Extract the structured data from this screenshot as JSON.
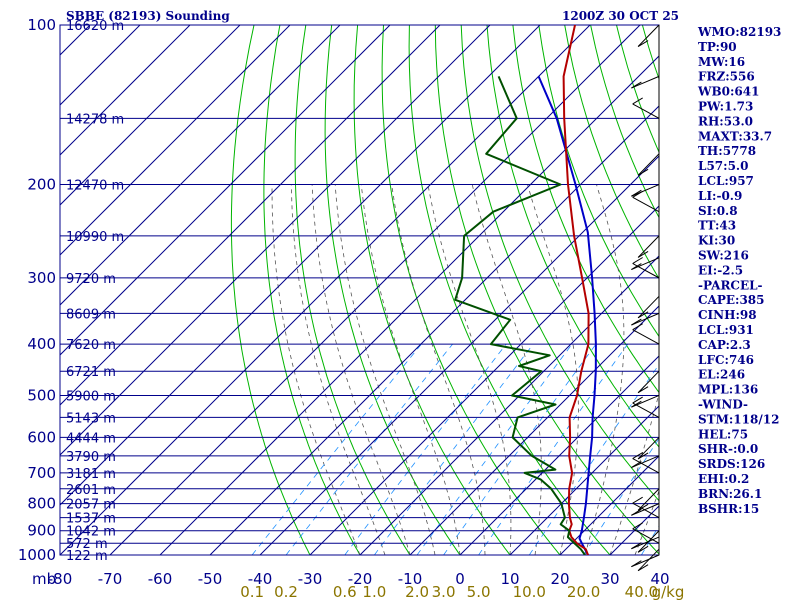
{
  "header": {
    "station_title": "SBBE (82193) Sounding",
    "valid_time": "1200Z 30 OCT 25"
  },
  "axis_corner_label": "mb",
  "pressure_labels": [
    "100",
    "200",
    "300",
    "400",
    "500",
    "600",
    "700",
    "800",
    "900",
    "1000"
  ],
  "height_labels": [
    {
      "p": 100,
      "text": "16620 m"
    },
    {
      "p": 150,
      "text": "14278 m"
    },
    {
      "p": 200,
      "text": "12470 m"
    },
    {
      "p": 250,
      "text": "10990 m"
    },
    {
      "p": 300,
      "text": "9720 m"
    },
    {
      "p": 350,
      "text": "8609 m"
    },
    {
      "p": 400,
      "text": "7620 m"
    },
    {
      "p": 450,
      "text": "6721 m"
    },
    {
      "p": 500,
      "text": "5900 m"
    },
    {
      "p": 550,
      "text": "5143 m"
    },
    {
      "p": 600,
      "text": "4444 m"
    },
    {
      "p": 650,
      "text": "3790 m"
    },
    {
      "p": 700,
      "text": "3181 m"
    },
    {
      "p": 750,
      "text": "2601 m"
    },
    {
      "p": 800,
      "text": "2057 m"
    },
    {
      "p": 850,
      "text": "1537 m"
    },
    {
      "p": 900,
      "text": "1042 m"
    },
    {
      "p": 950,
      "text": "572 m"
    },
    {
      "p": 1000,
      "text": "122 m"
    }
  ],
  "temperature_ticks": [
    "-80",
    "-70",
    "-60",
    "-50",
    "-40",
    "-30",
    "-20",
    "-10",
    "0",
    "10",
    "20",
    "30",
    "40"
  ],
  "mixing_ratio_labels": [
    "0.1",
    "0.2",
    "0.6",
    "1.0",
    "2.0",
    "3.0",
    "5.0",
    "10.0",
    "20.0",
    "40.0"
  ],
  "mixing_ratio_unit": "g/kg",
  "indices": [
    "WMO:82193",
    "TP:90",
    "MW:16",
    "FRZ:556",
    "WB0:641",
    "PW:1.73",
    "RH:53.0",
    "MAXT:33.7",
    "TH:5778",
    "L57:5.0",
    "LCL:957",
    "LI:-0.9",
    "SI:0.8",
    "TT:43",
    "KI:30",
    "SW:216",
    "EI:-2.5",
    "-PARCEL-",
    "CAPE:385",
    "CINH:98",
    "LCL:931",
    "CAP:2.3",
    "LFC:746",
    "EL:246",
    "MPL:136",
    "-WIND-",
    "STM:118/12",
    "HEL:75",
    "SHR-:0.0",
    "SRDS:126",
    "EHI:0.2",
    "BRN:26.1",
    "BSHR:15"
  ],
  "colors": {
    "grid": "#00008b",
    "dry_adiabat": "#00b400",
    "moist_adiabat": "#555555",
    "mixing_ratio": "#1e90ff",
    "temperature": "#b40000",
    "dewpoint": "#005000",
    "parcel": "#0000c8",
    "mixing_ratio_label": "#8b7500"
  },
  "chart_data": {
    "type": "line",
    "title": "SBBE (82193) Sounding",
    "subtitle": "1200Z 30 OCT 25",
    "xlabel": "",
    "ylabel": "mb",
    "xlim": [
      -80,
      40
    ],
    "ylim": [
      1000,
      100
    ],
    "y_scale": "log-pressure",
    "x_skew": "skew-T",
    "grid": true,
    "series": [
      {
        "role": "temperature",
        "p": [
          1000,
          975,
          950,
          925,
          900,
          875,
          850,
          800,
          750,
          700,
          650,
          600,
          550,
          500,
          450,
          400,
          350,
          300,
          250,
          200,
          150,
          125,
          100
        ],
        "v": [
          25.6,
          24.0,
          21.0,
          18.7,
          17.0,
          16.2,
          14.5,
          11.5,
          8.6,
          6.0,
          2.0,
          -1.5,
          -5.6,
          -8.5,
          -12.5,
          -16.5,
          -22.6,
          -31.0,
          -41.0,
          -52.5,
          -66.5,
          -75.0,
          -83.0
        ]
      },
      {
        "role": "dewpoint",
        "p": [
          1000,
          975,
          950,
          925,
          900,
          875,
          850,
          800,
          750,
          720,
          700,
          690,
          650,
          600,
          550,
          520,
          500,
          450,
          440,
          420,
          400,
          360,
          330,
          300,
          250,
          225,
          200,
          175,
          150,
          125
        ],
        "v": [
          25.0,
          23.0,
          20.5,
          18.0,
          17.0,
          14.0,
          13.5,
          10.0,
          5.0,
          1.0,
          -3.5,
          2.0,
          -5.5,
          -13.0,
          -16.0,
          -11.0,
          -21.5,
          -20.5,
          -26.0,
          -22.0,
          -36.0,
          -37.0,
          -52.0,
          -55.0,
          -63.0,
          -62.0,
          -54.0,
          -75.0,
          -76.0,
          -88.0
        ]
      },
      {
        "role": "parcel",
        "p": [
          1000,
          950,
          931,
          900,
          850,
          800,
          750,
          700,
          650,
          600,
          550,
          500,
          450,
          400,
          350,
          300,
          246,
          200,
          150,
          125
        ],
        "v": [
          25.6,
          22.0,
          20.6,
          19.5,
          17.3,
          14.9,
          12.2,
          9.3,
          6.2,
          2.9,
          -1.0,
          -5.0,
          -9.6,
          -15.0,
          -21.4,
          -29.0,
          -39.0,
          -51.0,
          -68.0,
          -80.0
        ]
      }
    ]
  }
}
